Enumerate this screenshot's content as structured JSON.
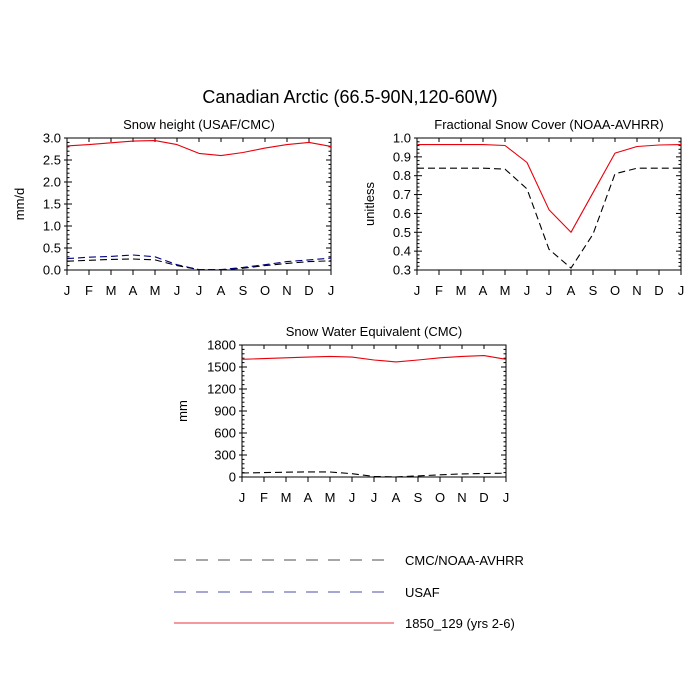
{
  "figure": {
    "title": "Canadian Arctic (66.5-90N,120-60W)"
  },
  "legend": [
    {
      "label": "CMC/NOAA-AVHRR",
      "color": "#000000",
      "dash": "dashed"
    },
    {
      "label": "USAF",
      "color": "#000080",
      "dash": "dashed"
    },
    {
      "label": "1850_129 (yrs 2-6)",
      "color": "#e8000b",
      "dash": "solid"
    }
  ],
  "chart_data": [
    {
      "type": "line",
      "title": "Snow height (USAF/CMC)",
      "ylabel": "mm/d",
      "xlabel": "",
      "categories": [
        "J",
        "F",
        "M",
        "A",
        "M",
        "J",
        "J",
        "A",
        "S",
        "O",
        "N",
        "D",
        "J"
      ],
      "ylim": [
        0,
        3.0
      ],
      "yticks": [
        0.0,
        0.5,
        1.0,
        1.5,
        2.0,
        2.5,
        3.0
      ],
      "ytick_labels": [
        "0.0",
        "0.5",
        "1.0",
        "1.5",
        "2.0",
        "2.5",
        "3.0"
      ],
      "grid": false,
      "series": [
        {
          "name": "1850_129 (yrs 2-6)",
          "color": "#e8000b",
          "dash": "solid",
          "values": [
            2.82,
            2.85,
            2.89,
            2.93,
            2.94,
            2.85,
            2.65,
            2.6,
            2.67,
            2.77,
            2.85,
            2.9,
            2.81
          ]
        },
        {
          "name": "CMC/NOAA-AVHRR",
          "color": "#000000",
          "dash": "dashed",
          "values": [
            0.2,
            0.22,
            0.24,
            0.25,
            0.23,
            0.1,
            0.01,
            0.0,
            0.04,
            0.1,
            0.15,
            0.19,
            0.21
          ]
        },
        {
          "name": "USAF",
          "color": "#000080",
          "dash": "dashed",
          "values": [
            0.26,
            0.29,
            0.31,
            0.34,
            0.3,
            0.12,
            0.01,
            0.01,
            0.06,
            0.12,
            0.19,
            0.23,
            0.27
          ]
        }
      ]
    },
    {
      "type": "line",
      "title": "Fractional Snow Cover (NOAA-AVHRR)",
      "ylabel": "unitless",
      "xlabel": "",
      "categories": [
        "J",
        "F",
        "M",
        "A",
        "M",
        "J",
        "J",
        "A",
        "S",
        "O",
        "N",
        "D",
        "J"
      ],
      "ylim": [
        0.3,
        1.0
      ],
      "yticks": [
        0.3,
        0.4,
        0.5,
        0.6,
        0.7,
        0.8,
        0.9,
        1.0
      ],
      "ytick_labels": [
        "0.3",
        "0.4",
        "0.5",
        "0.6",
        "0.7",
        "0.8",
        "0.9",
        "1.0"
      ],
      "grid": false,
      "series": [
        {
          "name": "1850_129 (yrs 2-6)",
          "color": "#e8000b",
          "dash": "solid",
          "values": [
            0.965,
            0.965,
            0.965,
            0.965,
            0.96,
            0.87,
            0.62,
            0.5,
            0.71,
            0.92,
            0.955,
            0.963,
            0.965
          ]
        },
        {
          "name": "CMC/NOAA-AVHRR",
          "color": "#000000",
          "dash": "dashed",
          "values": [
            0.84,
            0.84,
            0.84,
            0.84,
            0.835,
            0.73,
            0.41,
            0.31,
            0.49,
            0.81,
            0.84,
            0.84,
            0.84
          ]
        }
      ]
    },
    {
      "type": "line",
      "title": "Snow Water Equivalent (CMC)",
      "ylabel": "mm",
      "xlabel": "",
      "categories": [
        "J",
        "F",
        "M",
        "A",
        "M",
        "J",
        "J",
        "A",
        "S",
        "O",
        "N",
        "D",
        "J"
      ],
      "ylim": [
        0,
        1800
      ],
      "yticks": [
        0,
        300,
        600,
        900,
        1200,
        1500,
        1800
      ],
      "ytick_labels": [
        "0",
        "300",
        "600",
        "900",
        "1200",
        "1500",
        "1800"
      ],
      "grid": false,
      "series": [
        {
          "name": "1850_129 (yrs 2-6)",
          "color": "#e8000b",
          "dash": "solid",
          "values": [
            1605,
            1615,
            1625,
            1635,
            1645,
            1635,
            1595,
            1570,
            1595,
            1625,
            1645,
            1655,
            1605
          ]
        },
        {
          "name": "CMC/NOAA-AVHRR",
          "color": "#000000",
          "dash": "dashed",
          "values": [
            55,
            60,
            65,
            70,
            68,
            45,
            8,
            2,
            15,
            30,
            42,
            48,
            52
          ]
        }
      ]
    }
  ]
}
